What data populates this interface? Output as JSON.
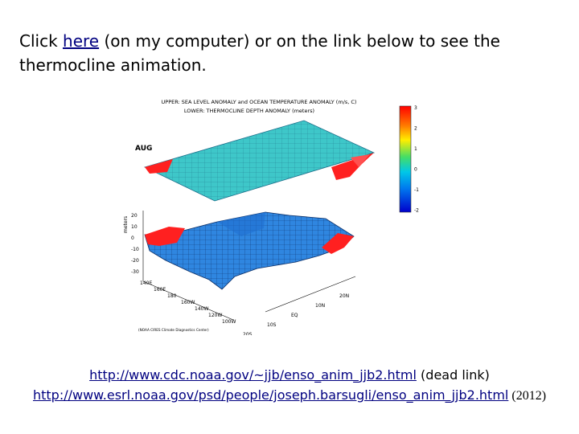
{
  "intro": {
    "prefix": "Click ",
    "link_text": "here",
    "suffix": " (on my computer) or on the link below to see the thermocline animation."
  },
  "figure": {
    "title_line1": "UPPER: SEA LEVEL ANOMALY and OCEAN TEMPERATURE ANOMALY (m/s, C)",
    "title_line2": "LOWER: THERMOCLINE DEPTH ANOMALY (meters)",
    "month_label": "AUG",
    "colorbar_ticks": [
      "3",
      "2",
      "1",
      "0",
      "-1",
      "-2"
    ],
    "z_axis_label": "meters",
    "z_ticks": [
      "20",
      "10",
      "0",
      "-10",
      "-20",
      "-30"
    ],
    "lon_ticks": [
      "140E",
      "160E",
      "180",
      "160W",
      "140W",
      "120W",
      "100W"
    ],
    "lat_ticks": [
      "20N",
      "10N",
      "EQ",
      "10S",
      "20S"
    ],
    "credit": "(NOAA CIRES Climate Diagnostics Center)",
    "colors": {
      "upper_surface": "#3ec7c9",
      "lower_surface": "#2f86e0",
      "warm": "#ff2020",
      "mesh": "#113366"
    }
  },
  "links": {
    "cdc_url": "http://www.cdc.noaa.gov/~jjb/enso_anim_jjb2.html",
    "cdc_note": " (dead link)",
    "esrl_url": "http://www.esrl.noaa.gov/psd/people/joseph.barsugli/enso_anim_jjb2.html",
    "esrl_note": " (2012)"
  }
}
